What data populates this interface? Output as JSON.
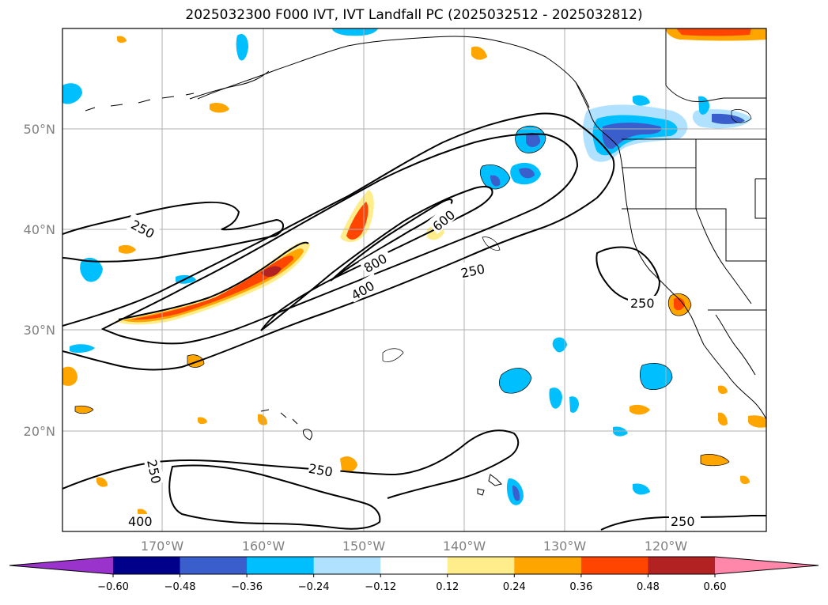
{
  "title": "2025032300 F000 IVT, IVT Landfall PC (2025032512 - 2025032812)",
  "lat_labels": [
    "50°N",
    "40°N",
    "30°N",
    "20°N"
  ],
  "lon_labels": [
    "170°W",
    "160°W",
    "150°W",
    "140°W",
    "130°W",
    "120°W"
  ],
  "colorbar": {
    "ticks": [
      "−0.60",
      "−0.48",
      "−0.36",
      "−0.24",
      "−0.12",
      "0.12",
      "0.24",
      "0.36",
      "0.48",
      "0.60"
    ],
    "colors": [
      "#9933cc",
      "#00008b",
      "#3a5fcd",
      "#00bfff",
      "#b0e2ff",
      "#ffffff",
      "#ffec8b",
      "#ffa500",
      "#ff4500",
      "#b22222",
      "#ff88aa"
    ]
  },
  "contour_labels": [
    "250",
    "250",
    "250",
    "250",
    "250",
    "250",
    "400",
    "400",
    "600",
    "800"
  ],
  "colors": {
    "grid": "#b0b0b0",
    "tick_label": "#808080",
    "contour": "#000000"
  }
}
